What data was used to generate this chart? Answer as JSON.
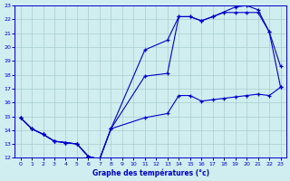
{
  "bg_color": "#d0eef0",
  "line_color": "#0000cc",
  "grid_color": "#aacccc",
  "xlabel": "Graphe des températures (°c)",
  "xlabel_color": "#0000cc",
  "xlim": [
    -0.5,
    23.5
  ],
  "ylim": [
    12,
    23
  ],
  "yticks": [
    12,
    13,
    14,
    15,
    16,
    17,
    18,
    19,
    20,
    21,
    22,
    23
  ],
  "xticks": [
    0,
    1,
    2,
    3,
    4,
    5,
    6,
    7,
    8,
    9,
    10,
    11,
    12,
    13,
    14,
    15,
    16,
    17,
    18,
    19,
    20,
    21,
    22,
    23
  ],
  "line1_x": [
    0,
    1,
    2,
    3,
    4,
    5,
    6,
    7,
    8,
    11,
    13,
    14,
    15,
    16,
    17,
    19,
    20,
    21,
    22,
    23
  ],
  "line1_y": [
    14.9,
    14.1,
    13.7,
    13.2,
    13.1,
    13.0,
    12.1,
    11.9,
    14.1,
    19.8,
    20.5,
    22.2,
    22.2,
    21.9,
    22.2,
    22.9,
    23.0,
    22.7,
    21.1,
    18.6
  ],
  "line2_x": [
    0,
    1,
    2,
    3,
    4,
    5,
    6,
    7,
    8,
    11,
    13,
    14,
    15,
    16,
    17,
    18,
    19,
    20,
    21,
    22,
    23
  ],
  "line2_y": [
    14.9,
    14.1,
    13.7,
    13.2,
    13.1,
    13.0,
    12.1,
    11.9,
    14.1,
    17.9,
    18.1,
    22.2,
    22.2,
    21.9,
    22.2,
    22.5,
    22.5,
    22.5,
    22.5,
    21.1,
    17.1
  ],
  "line3_x": [
    0,
    1,
    2,
    3,
    4,
    5,
    6,
    7,
    8,
    11,
    13,
    14,
    15,
    16,
    17,
    18,
    19,
    20,
    21,
    22,
    23
  ],
  "line3_y": [
    14.9,
    14.1,
    13.7,
    13.2,
    13.1,
    13.0,
    12.1,
    11.9,
    14.1,
    14.9,
    15.2,
    16.5,
    16.5,
    16.1,
    16.2,
    16.3,
    16.4,
    16.5,
    16.6,
    16.5,
    17.1
  ]
}
